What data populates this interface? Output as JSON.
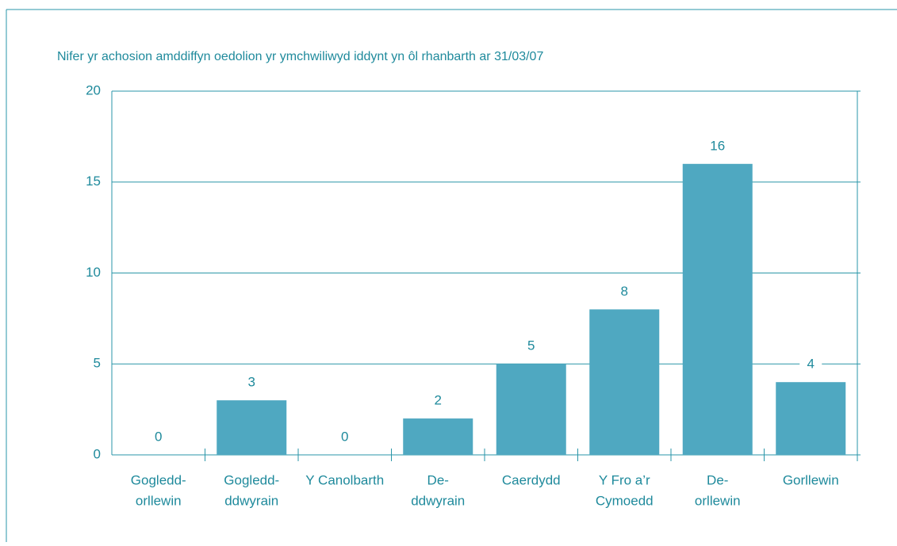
{
  "chart_data": {
    "type": "bar",
    "title": "Nifer yr achosion amddiffyn oedolion yr ymchwiliwyd iddynt yn ôl rhanbarth ar 31/03/07",
    "categories": [
      [
        "Gogledd-",
        "orllewin"
      ],
      [
        "Gogledd-",
        "ddwyrain"
      ],
      [
        "Y Canolbarth"
      ],
      [
        "De-",
        "ddwyrain"
      ],
      [
        "Caerdydd"
      ],
      [
        "Y Fro a’r",
        "Cymoedd"
      ],
      [
        "De-",
        "orllewin"
      ],
      [
        "Gorllewin"
      ]
    ],
    "values": [
      0,
      3,
      0,
      2,
      5,
      8,
      16,
      4
    ],
    "color": "#4fa8c1",
    "ylim": [
      0,
      20
    ],
    "yticks": [
      0,
      5,
      10,
      15,
      20
    ],
    "grid": true
  }
}
